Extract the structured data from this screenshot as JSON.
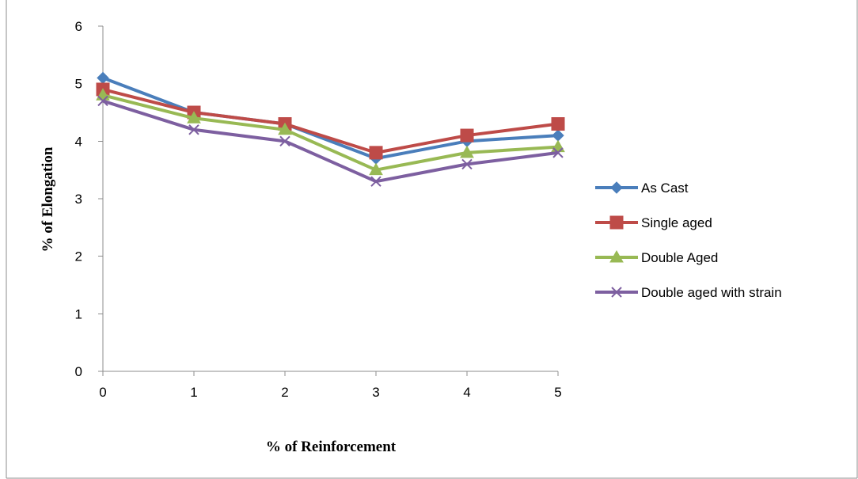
{
  "chart_data": {
    "type": "line",
    "title": "",
    "xlabel": "% of Reinforcement",
    "ylabel": "% of Elongation",
    "x": [
      0,
      1,
      2,
      3,
      4,
      5
    ],
    "xticks": [
      "0",
      "1",
      "2",
      "3",
      "4",
      "5"
    ],
    "yticks": [
      "0",
      "1",
      "2",
      "3",
      "4",
      "5",
      "6"
    ],
    "ylim": [
      0,
      6
    ],
    "grid": false,
    "legend_position": "right",
    "series": [
      {
        "name": "As Cast",
        "values": [
          5.1,
          4.5,
          4.3,
          3.7,
          4.0,
          4.1
        ],
        "color": "#4a7ebb",
        "marker": "diamond"
      },
      {
        "name": "Single aged",
        "values": [
          4.9,
          4.5,
          4.3,
          3.8,
          4.1,
          4.3
        ],
        "color": "#be4b48",
        "marker": "square"
      },
      {
        "name": "Double Aged",
        "values": [
          4.8,
          4.4,
          4.2,
          3.5,
          3.8,
          3.9
        ],
        "color": "#98b954",
        "marker": "triangle"
      },
      {
        "name": "Double aged with strain",
        "values": [
          4.7,
          4.2,
          4.0,
          3.3,
          3.6,
          3.8
        ],
        "color": "#7d5fa0",
        "marker": "x"
      }
    ]
  }
}
